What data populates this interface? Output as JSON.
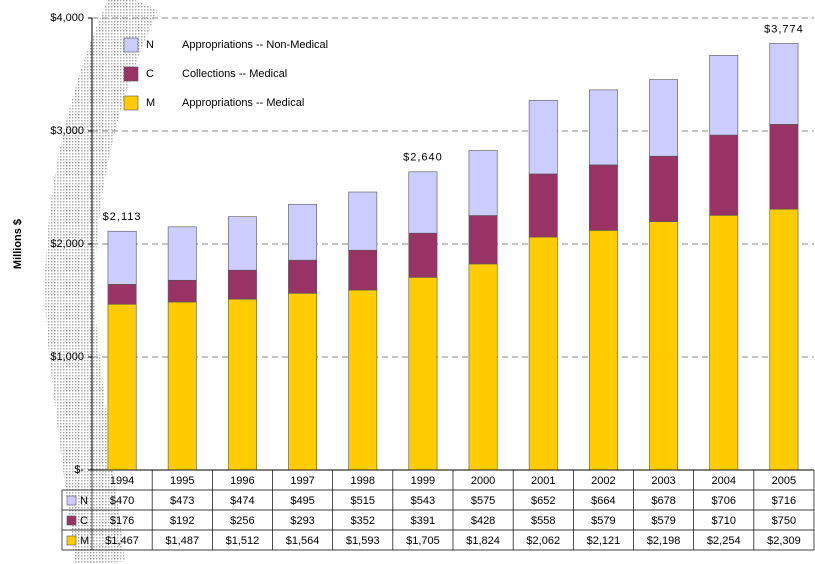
{
  "chart_data": {
    "type": "stacked-bar",
    "y_label": "Millions $",
    "categories": [
      "1994",
      "1995",
      "1996",
      "1997",
      "1998",
      "1999",
      "2000",
      "2001",
      "2002",
      "2003",
      "2004",
      "2005"
    ],
    "series": [
      {
        "name": "N",
        "description": "Appropriations -- Non-Medical",
        "color": "#ccccff",
        "values": [
          470,
          473,
          474,
          495,
          515,
          543,
          575,
          652,
          664,
          678,
          706,
          716
        ],
        "value_labels": [
          "$470",
          "$473",
          "$474",
          "$495",
          "$515",
          "$543",
          "$575",
          "$652",
          "$664",
          "$678",
          "$706",
          "$716"
        ]
      },
      {
        "name": "C",
        "description": "Collections -- Medical",
        "color": "#993366",
        "values": [
          176,
          192,
          256,
          293,
          352,
          391,
          428,
          558,
          579,
          579,
          710,
          750
        ],
        "value_labels": [
          "$176",
          "$192",
          "$256",
          "$293",
          "$352",
          "$391",
          "$428",
          "$558",
          "$579",
          "$579",
          "$710",
          "$750"
        ]
      },
      {
        "name": "M",
        "description": "Appropriations -- Medical",
        "color": "#ffcc00",
        "values": [
          1467,
          1487,
          1512,
          1564,
          1593,
          1705,
          1824,
          2062,
          2121,
          2198,
          2254,
          2309
        ],
        "value_labels": [
          "$1,467",
          "$1,487",
          "$1,512",
          "$1,564",
          "$1,593",
          "$1,705",
          "$1,824",
          "$2,062",
          "$2,121",
          "$2,198",
          "$2,254",
          "$2,309"
        ]
      }
    ],
    "annotations": [
      {
        "category": "1994",
        "label": "$2,113"
      },
      {
        "category": "1999",
        "label": "$2,640"
      },
      {
        "category": "2005",
        "label": "$3,774"
      }
    ],
    "ylim": [
      0,
      4000
    ],
    "yticks": [
      {
        "value": 0,
        "label": "$-"
      },
      {
        "value": 1000,
        "label": "$1,000"
      },
      {
        "value": 2000,
        "label": "$2,000"
      },
      {
        "value": 3000,
        "label": "$3,000"
      },
      {
        "value": 4000,
        "label": "$4,000"
      }
    ],
    "grid": true
  }
}
